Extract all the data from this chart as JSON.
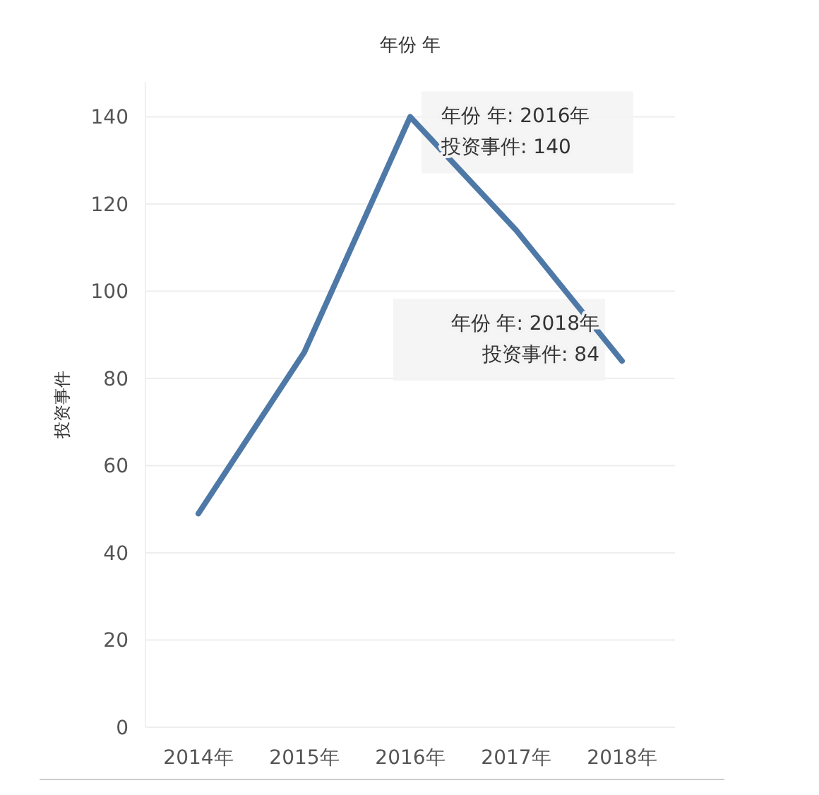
{
  "chart_data": {
    "type": "line",
    "title": "年份 年",
    "ylabel": "投资事件",
    "categories": [
      "2014年",
      "2015年",
      "2016年",
      "2017年",
      "2018年"
    ],
    "series": [
      {
        "color": "#4e79a7",
        "values": [
          49,
          86,
          140,
          114,
          84
        ]
      }
    ],
    "ylim": [
      0,
      148
    ],
    "yticks": [
      0,
      20,
      40,
      60,
      80,
      100,
      120,
      140
    ],
    "grid": "y",
    "annotations": [
      {
        "text": "年份 年: 2016年",
        "x": "2016年",
        "y": 140
      },
      {
        "text": "投资事件: 140",
        "x": "2016年",
        "y": 140
      },
      {
        "text": "年份 年: 2018年",
        "x": "2018年",
        "y": 84
      },
      {
        "text": "投资事件: 84",
        "x": "2018年",
        "y": 84
      }
    ]
  }
}
